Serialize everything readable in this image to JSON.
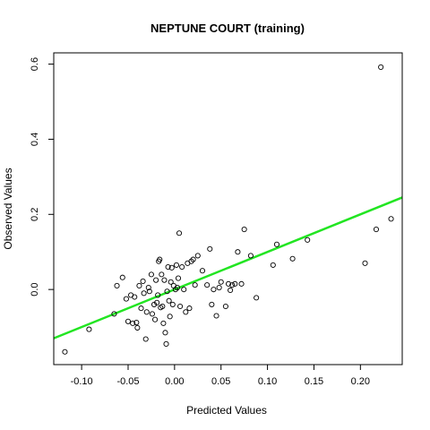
{
  "chart_data": {
    "type": "scatter",
    "title": "NEPTUNE COURT (training)",
    "xlabel": "Predicted Values",
    "ylabel": "Observed Values",
    "xlim": [
      -0.13,
      0.245
    ],
    "ylim": [
      -0.2,
      0.63
    ],
    "x_ticks": [
      -0.1,
      -0.05,
      0.0,
      0.05,
      0.1,
      0.15,
      0.2
    ],
    "x_tick_labels": [
      "-0.10",
      "-0.05",
      "0.00",
      "0.05",
      "0.10",
      "0.15",
      "0.20"
    ],
    "y_ticks": [
      0.0,
      0.2,
      0.4,
      0.6
    ],
    "y_tick_labels": [
      "0.0",
      "0.2",
      "0.4",
      "0.6"
    ],
    "grid": false,
    "fit_line": {
      "color": "#22e522",
      "intercept": 0.0,
      "slope": 1.0
    },
    "points": [
      {
        "x": -0.118,
        "y": -0.166
      },
      {
        "x": -0.092,
        "y": -0.106
      },
      {
        "x": -0.065,
        "y": -0.065
      },
      {
        "x": -0.062,
        "y": 0.01
      },
      {
        "x": -0.056,
        "y": 0.032
      },
      {
        "x": -0.052,
        "y": -0.025
      },
      {
        "x": -0.05,
        "y": -0.085
      },
      {
        "x": -0.047,
        "y": -0.015
      },
      {
        "x": -0.045,
        "y": -0.09
      },
      {
        "x": -0.043,
        "y": -0.02
      },
      {
        "x": -0.041,
        "y": -0.088
      },
      {
        "x": -0.04,
        "y": -0.102
      },
      {
        "x": -0.038,
        "y": 0.01
      },
      {
        "x": -0.036,
        "y": -0.05
      },
      {
        "x": -0.034,
        "y": 0.022
      },
      {
        "x": -0.033,
        "y": -0.01
      },
      {
        "x": -0.031,
        "y": -0.132
      },
      {
        "x": -0.03,
        "y": -0.06
      },
      {
        "x": -0.028,
        "y": 0.005
      },
      {
        "x": -0.027,
        "y": -0.005
      },
      {
        "x": -0.025,
        "y": 0.04
      },
      {
        "x": -0.024,
        "y": -0.065
      },
      {
        "x": -0.022,
        "y": -0.04
      },
      {
        "x": -0.021,
        "y": -0.08
      },
      {
        "x": -0.02,
        "y": 0.025
      },
      {
        "x": -0.019,
        "y": -0.035
      },
      {
        "x": -0.018,
        "y": -0.015
      },
      {
        "x": -0.017,
        "y": 0.075
      },
      {
        "x": -0.016,
        "y": 0.08
      },
      {
        "x": -0.015,
        "y": -0.048
      },
      {
        "x": -0.014,
        "y": 0.04
      },
      {
        "x": -0.013,
        "y": -0.045
      },
      {
        "x": -0.012,
        "y": -0.09
      },
      {
        "x": -0.011,
        "y": 0.025
      },
      {
        "x": -0.01,
        "y": -0.115
      },
      {
        "x": -0.009,
        "y": -0.145
      },
      {
        "x": -0.008,
        "y": -0.005
      },
      {
        "x": -0.007,
        "y": 0.06
      },
      {
        "x": -0.006,
        "y": -0.03
      },
      {
        "x": -0.005,
        "y": -0.072
      },
      {
        "x": -0.004,
        "y": 0.02
      },
      {
        "x": -0.003,
        "y": 0.058
      },
      {
        "x": -0.002,
        "y": -0.04
      },
      {
        "x": -0.001,
        "y": 0.01
      },
      {
        "x": 0.001,
        "y": 0.0
      },
      {
        "x": 0.002,
        "y": 0.065
      },
      {
        "x": 0.003,
        "y": 0.005
      },
      {
        "x": 0.004,
        "y": 0.03
      },
      {
        "x": 0.005,
        "y": 0.15
      },
      {
        "x": 0.006,
        "y": -0.045
      },
      {
        "x": 0.008,
        "y": 0.06
      },
      {
        "x": 0.01,
        "y": 0.0
      },
      {
        "x": 0.012,
        "y": -0.06
      },
      {
        "x": 0.014,
        "y": 0.07
      },
      {
        "x": 0.016,
        "y": -0.05
      },
      {
        "x": 0.018,
        "y": 0.075
      },
      {
        "x": 0.02,
        "y": 0.08
      },
      {
        "x": 0.022,
        "y": 0.012
      },
      {
        "x": 0.025,
        "y": 0.09
      },
      {
        "x": 0.03,
        "y": 0.05
      },
      {
        "x": 0.035,
        "y": 0.012
      },
      {
        "x": 0.038,
        "y": 0.108
      },
      {
        "x": 0.04,
        "y": -0.04
      },
      {
        "x": 0.042,
        "y": 0.0
      },
      {
        "x": 0.045,
        "y": -0.07
      },
      {
        "x": 0.048,
        "y": 0.005
      },
      {
        "x": 0.05,
        "y": 0.02
      },
      {
        "x": 0.055,
        "y": -0.045
      },
      {
        "x": 0.058,
        "y": 0.015
      },
      {
        "x": 0.06,
        "y": -0.002
      },
      {
        "x": 0.062,
        "y": 0.012
      },
      {
        "x": 0.065,
        "y": 0.015
      },
      {
        "x": 0.068,
        "y": 0.1
      },
      {
        "x": 0.072,
        "y": 0.015
      },
      {
        "x": 0.075,
        "y": 0.16
      },
      {
        "x": 0.082,
        "y": 0.09
      },
      {
        "x": 0.088,
        "y": -0.022
      },
      {
        "x": 0.106,
        "y": 0.065
      },
      {
        "x": 0.11,
        "y": 0.12
      },
      {
        "x": 0.127,
        "y": 0.082
      },
      {
        "x": 0.143,
        "y": 0.132
      },
      {
        "x": 0.205,
        "y": 0.07
      },
      {
        "x": 0.217,
        "y": 0.16
      },
      {
        "x": 0.222,
        "y": 0.592
      },
      {
        "x": 0.233,
        "y": 0.188
      }
    ]
  }
}
